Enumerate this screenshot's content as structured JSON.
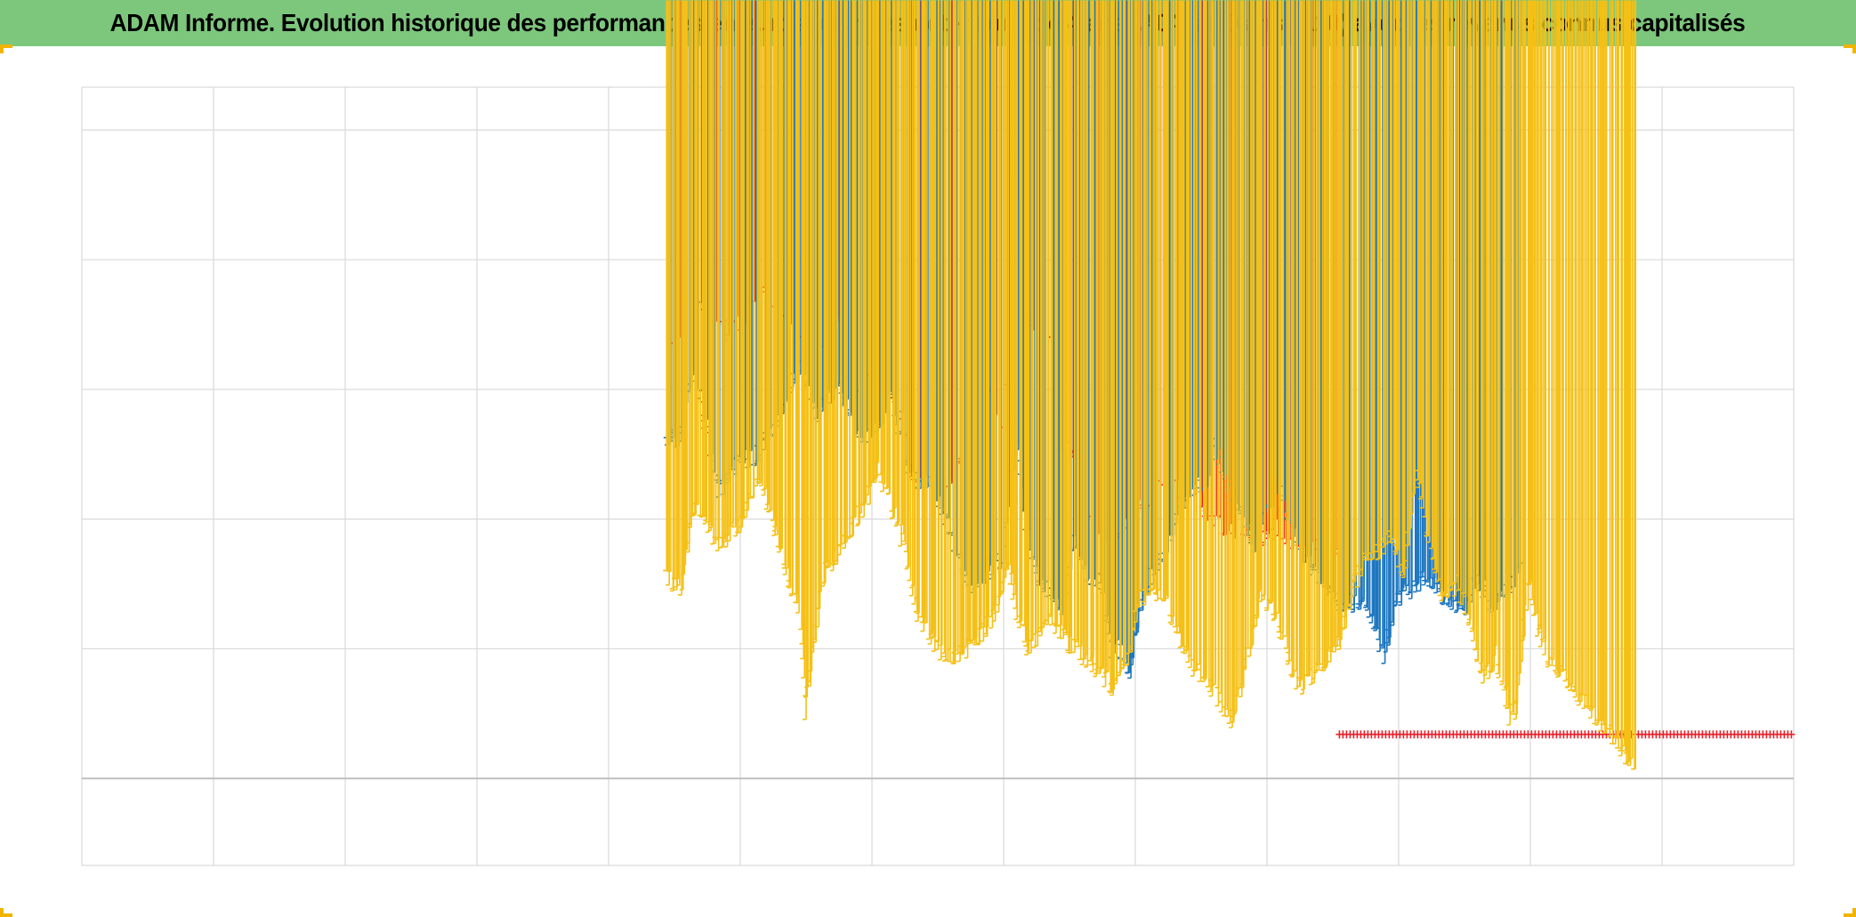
{
  "title": "ADAM Informe. Evolution historique des performances en euros pour des détentions de 4 ans (A04) à 10 ans (A10) avec les revenus connus capitalisés",
  "colors": {
    "title_bg": "#7dc77d",
    "grid": "#d9d9d9",
    "axis": "#bfbfbf",
    "series_red": "#e8202a",
    "series_blue": "#1f77c0",
    "series_yellow": "#f5c016",
    "corner_accent": "#f0b400"
  },
  "chart_data": {
    "type": "scatter",
    "title": "ADAM Informe. Evolution historique des performances en euros pour des détentions de 4 ans (A04) à 10 ans (A10) avec les revenus connus capitalisés",
    "xlabel": "",
    "ylabel": "",
    "xlim": [
      0,
      13
    ],
    "ylim": [
      -0.67,
      5.33
    ],
    "baseline_y": 0,
    "grid": true,
    "legend": "none",
    "marker": "+",
    "series": [
      {
        "name": "red",
        "color": "#e8202a",
        "points": [
          [
            4.5,
            3.3
          ],
          [
            4.6,
            3.5
          ],
          [
            4.75,
            3.7
          ],
          [
            4.9,
            3.45
          ],
          [
            5.05,
            3.55
          ],
          [
            5.2,
            3.75
          ],
          [
            5.35,
            3.55
          ],
          [
            5.5,
            3.4
          ],
          [
            5.65,
            3.3
          ],
          [
            5.75,
            3.55
          ],
          [
            5.85,
            3.0
          ],
          [
            6.0,
            3.15
          ],
          [
            6.15,
            2.95
          ],
          [
            6.25,
            2.75
          ],
          [
            6.35,
            2.3
          ],
          [
            6.45,
            2.45
          ],
          [
            6.55,
            2.2
          ],
          [
            6.65,
            2.35
          ],
          [
            6.8,
            2.75
          ],
          [
            6.92,
            2.95
          ],
          [
            7.0,
            2.7
          ],
          [
            7.05,
            3.1
          ],
          [
            7.08,
            4.8
          ],
          [
            7.11,
            4.5
          ],
          [
            7.14,
            4.1
          ],
          [
            7.17,
            3.8
          ],
          [
            7.22,
            3.4
          ],
          [
            7.3,
            3.6
          ],
          [
            7.38,
            3.3
          ],
          [
            7.45,
            2.6
          ],
          [
            7.55,
            2.5
          ],
          [
            7.65,
            2.0
          ],
          [
            7.75,
            1.8
          ],
          [
            7.85,
            1.85
          ],
          [
            7.95,
            2.0
          ],
          [
            8.1,
            2.15
          ],
          [
            8.25,
            2.3
          ],
          [
            8.4,
            2.2
          ],
          [
            8.5,
            2.05
          ],
          [
            8.6,
            2.0
          ],
          [
            8.72,
            1.9
          ],
          [
            8.85,
            1.95
          ],
          [
            9.0,
            1.85
          ],
          [
            9.1,
            1.95
          ],
          [
            9.2,
            1.8
          ],
          [
            9.3,
            1.85
          ],
          [
            9.38,
            1.8
          ],
          [
            9.45,
            1.85
          ],
          [
            9.55,
            1.8
          ]
        ]
      },
      {
        "name": "red-flat",
        "color": "#e8202a",
        "points": [
          [
            9.55,
            0.34
          ],
          [
            13.0,
            0.34
          ]
        ]
      },
      {
        "name": "blue",
        "color": "#1f77c0",
        "points": [
          [
            4.45,
            2.65
          ],
          [
            4.55,
            2.6
          ],
          [
            4.65,
            3.2
          ],
          [
            4.75,
            2.7
          ],
          [
            4.85,
            2.2
          ],
          [
            5.0,
            2.45
          ],
          [
            5.15,
            2.5
          ],
          [
            5.3,
            2.75
          ],
          [
            5.45,
            3.2
          ],
          [
            5.6,
            2.8
          ],
          [
            5.75,
            3.05
          ],
          [
            5.85,
            2.8
          ],
          [
            5.95,
            2.6
          ],
          [
            6.05,
            2.7
          ],
          [
            6.15,
            3.0
          ],
          [
            6.25,
            2.5
          ],
          [
            6.35,
            2.3
          ],
          [
            6.45,
            2.3
          ],
          [
            6.55,
            2.05
          ],
          [
            6.65,
            1.75
          ],
          [
            6.75,
            1.5
          ],
          [
            6.85,
            1.55
          ],
          [
            7.0,
            1.7
          ],
          [
            7.1,
            2.7
          ],
          [
            7.15,
            2.1
          ],
          [
            7.25,
            1.6
          ],
          [
            7.35,
            1.45
          ],
          [
            7.45,
            1.3
          ],
          [
            7.55,
            1.8
          ],
          [
            7.65,
            1.55
          ],
          [
            7.75,
            1.5
          ],
          [
            7.82,
            1.0
          ],
          [
            7.9,
            1.0
          ],
          [
            7.95,
            0.75
          ],
          [
            8.05,
            1.3
          ],
          [
            8.15,
            1.6
          ],
          [
            8.25,
            1.75
          ],
          [
            8.35,
            2.1
          ],
          [
            8.45,
            2.25
          ],
          [
            8.55,
            2.3
          ],
          [
            8.62,
            2.55
          ],
          [
            8.72,
            2.25
          ],
          [
            8.8,
            2.1
          ],
          [
            8.9,
            1.8
          ],
          [
            9.0,
            2.05
          ],
          [
            9.1,
            2.3
          ],
          [
            9.2,
            1.9
          ],
          [
            9.3,
            1.7
          ],
          [
            9.4,
            1.55
          ],
          [
            9.5,
            1.4
          ],
          [
            9.6,
            1.35
          ],
          [
            9.7,
            1.35
          ],
          [
            9.8,
            1.25
          ],
          [
            9.85,
            1.1
          ],
          [
            9.9,
            0.95
          ],
          [
            10.0,
            1.4
          ],
          [
            10.1,
            1.45
          ],
          [
            10.2,
            1.55
          ],
          [
            10.3,
            1.45
          ],
          [
            10.4,
            1.35
          ],
          [
            10.5,
            1.25
          ],
          [
            10.6,
            1.55
          ],
          [
            10.7,
            1.35
          ],
          [
            10.8,
            1.4
          ],
          [
            10.9,
            1.55
          ],
          [
            10.95,
            1.65
          ]
        ]
      },
      {
        "name": "yellow",
        "color": "#f5c016",
        "points": [
          [
            4.45,
            1.55
          ],
          [
            4.55,
            1.45
          ],
          [
            4.65,
            2.1
          ],
          [
            4.75,
            1.95
          ],
          [
            4.85,
            1.8
          ],
          [
            5.0,
            1.95
          ],
          [
            5.15,
            2.3
          ],
          [
            5.25,
            2.0
          ],
          [
            5.35,
            1.6
          ],
          [
            5.45,
            1.35
          ],
          [
            5.5,
            0.5
          ],
          [
            5.55,
            0.9
          ],
          [
            5.65,
            1.6
          ],
          [
            5.8,
            1.8
          ],
          [
            5.95,
            2.1
          ],
          [
            6.05,
            2.4
          ],
          [
            6.15,
            2.1
          ],
          [
            6.25,
            1.8
          ],
          [
            6.35,
            1.3
          ],
          [
            6.5,
            1.0
          ],
          [
            6.6,
            0.95
          ],
          [
            6.75,
            1.0
          ],
          [
            6.85,
            1.1
          ],
          [
            6.95,
            1.3
          ],
          [
            7.05,
            1.7
          ],
          [
            7.1,
            1.3
          ],
          [
            7.2,
            1.0
          ],
          [
            7.35,
            1.2
          ],
          [
            7.45,
            1.1
          ],
          [
            7.6,
            0.95
          ],
          [
            7.75,
            0.8
          ],
          [
            7.85,
            0.7
          ],
          [
            7.95,
            0.95
          ],
          [
            8.05,
            1.4
          ],
          [
            8.15,
            1.45
          ],
          [
            8.25,
            1.35
          ],
          [
            8.35,
            1.05
          ],
          [
            8.45,
            0.85
          ],
          [
            8.55,
            0.75
          ],
          [
            8.65,
            0.6
          ],
          [
            8.75,
            0.45
          ],
          [
            8.85,
            0.9
          ],
          [
            8.95,
            1.4
          ],
          [
            9.05,
            1.35
          ],
          [
            9.15,
            1.0
          ],
          [
            9.25,
            0.7
          ],
          [
            9.35,
            0.8
          ],
          [
            9.45,
            0.9
          ],
          [
            9.55,
            1.05
          ],
          [
            9.65,
            1.4
          ],
          [
            9.75,
            1.7
          ],
          [
            9.85,
            1.75
          ],
          [
            9.95,
            1.85
          ],
          [
            10.05,
            1.6
          ],
          [
            10.15,
            2.3
          ],
          [
            10.25,
            1.7
          ],
          [
            10.35,
            1.35
          ],
          [
            10.45,
            1.5
          ],
          [
            10.55,
            1.2
          ],
          [
            10.65,
            0.75
          ],
          [
            10.75,
            0.95
          ],
          [
            10.85,
            0.45
          ],
          [
            10.9,
            0.55
          ],
          [
            11.0,
            1.55
          ],
          [
            11.05,
            1.2
          ],
          [
            11.15,
            0.9
          ],
          [
            11.25,
            0.8
          ],
          [
            11.35,
            0.65
          ],
          [
            11.45,
            0.55
          ],
          [
            11.55,
            0.4
          ],
          [
            11.65,
            0.3
          ],
          [
            11.75,
            0.15
          ],
          [
            11.8,
            0.05
          ]
        ]
      }
    ]
  }
}
